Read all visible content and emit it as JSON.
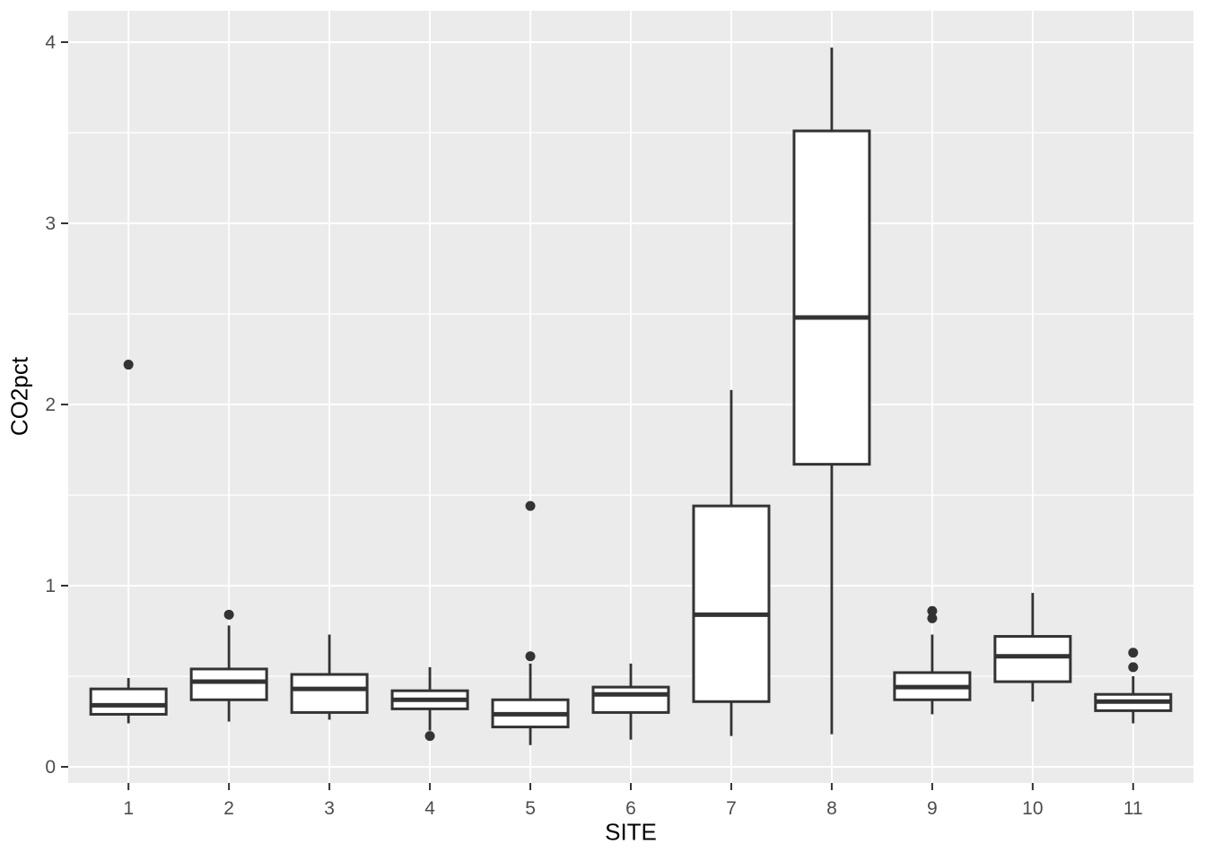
{
  "chart_data": {
    "type": "boxplot",
    "title": "",
    "xlabel": "SITE",
    "ylabel": "CO2pct",
    "categories": [
      "1",
      "2",
      "3",
      "4",
      "5",
      "6",
      "7",
      "8",
      "9",
      "10",
      "11"
    ],
    "y_ticks": [
      0,
      1,
      2,
      3,
      4
    ],
    "y_minor_ticks": [
      0.5,
      1.5,
      2.5,
      3.5
    ],
    "ylim": [
      -0.09,
      4.17
    ],
    "grid": "white major and minor horizontal lines, white vertical line at each category, on gray panel",
    "legend": "none",
    "series": [
      {
        "site": "1",
        "whisker_low": 0.24,
        "q1": 0.29,
        "median": 0.34,
        "q3": 0.43,
        "whisker_high": 0.49,
        "outliers": [
          2.22
        ]
      },
      {
        "site": "2",
        "whisker_low": 0.25,
        "q1": 0.37,
        "median": 0.47,
        "q3": 0.54,
        "whisker_high": 0.78,
        "outliers": [
          0.84
        ]
      },
      {
        "site": "3",
        "whisker_low": 0.26,
        "q1": 0.3,
        "median": 0.43,
        "q3": 0.51,
        "whisker_high": 0.73,
        "outliers": []
      },
      {
        "site": "4",
        "whisker_low": 0.2,
        "q1": 0.32,
        "median": 0.37,
        "q3": 0.42,
        "whisker_high": 0.55,
        "outliers": [
          0.17
        ]
      },
      {
        "site": "5",
        "whisker_low": 0.12,
        "q1": 0.22,
        "median": 0.29,
        "q3": 0.37,
        "whisker_high": 0.57,
        "outliers": [
          0.61,
          1.44
        ]
      },
      {
        "site": "6",
        "whisker_low": 0.15,
        "q1": 0.3,
        "median": 0.4,
        "q3": 0.44,
        "whisker_high": 0.57,
        "outliers": []
      },
      {
        "site": "7",
        "whisker_low": 0.17,
        "q1": 0.36,
        "median": 0.84,
        "q3": 1.44,
        "whisker_high": 2.08,
        "outliers": []
      },
      {
        "site": "8",
        "whisker_low": 0.18,
        "q1": 1.67,
        "median": 2.48,
        "q3": 3.51,
        "whisker_high": 3.97,
        "outliers": []
      },
      {
        "site": "9",
        "whisker_low": 0.29,
        "q1": 0.37,
        "median": 0.44,
        "q3": 0.52,
        "whisker_high": 0.73,
        "outliers": [
          0.82,
          0.86
        ]
      },
      {
        "site": "10",
        "whisker_low": 0.36,
        "q1": 0.47,
        "median": 0.61,
        "q3": 0.72,
        "whisker_high": 0.96,
        "outliers": []
      },
      {
        "site": "11",
        "whisker_low": 0.24,
        "q1": 0.31,
        "median": 0.36,
        "q3": 0.4,
        "whisker_high": 0.5,
        "outliers": [
          0.55,
          0.63
        ]
      }
    ],
    "style": {
      "outer_background": "#FFFFFF",
      "panel_background": "#EBEBEB",
      "grid_color": "#FFFFFF",
      "box_stroke": "#333333",
      "box_fill": "#FFFFFF",
      "outlier_color": "#333333",
      "tick_mark_color": "#333333",
      "tick_label_color": "#4D4D4D",
      "axis_title_color": "#000000"
    }
  }
}
